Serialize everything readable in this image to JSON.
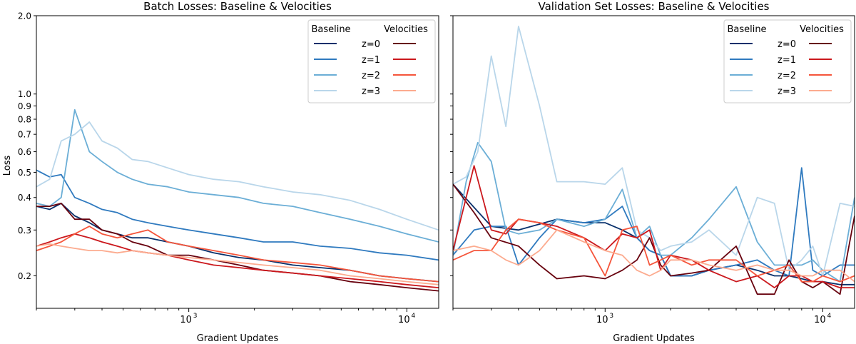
{
  "figure": {
    "shared_ylabel": "Loss",
    "xlabel": "Gradient Updates"
  },
  "legend": {
    "baseline_header": "Baseline",
    "velocities_header": "Velocities",
    "entries": [
      "z=0",
      "z=1",
      "z=2",
      "z=3"
    ],
    "baseline_colors": [
      "#08306b",
      "#2f7abf",
      "#6baed6",
      "#b9d6ea"
    ],
    "velocity_colors": [
      "#67000d",
      "#cb181d",
      "#f5553b",
      "#fcab8f"
    ],
    "placement": "top-right"
  },
  "chart_data": [
    {
      "type": "line",
      "title": "Batch Losses: Baseline & Velocities",
      "xlabel": "Gradient Updates",
      "ylabel": "Loss",
      "xscale": "log",
      "yscale": "log",
      "xlim": [
        200,
        14000
      ],
      "ylim": [
        0.15,
        2.0
      ],
      "x_ticks": [
        {
          "value": 1000,
          "base": "10",
          "exp": "3"
        },
        {
          "value": 10000,
          "base": "10",
          "exp": "4"
        }
      ],
      "y_ticks": [
        {
          "value": 0.2,
          "label": "0.2"
        },
        {
          "value": 0.3,
          "label": "0.3"
        },
        {
          "value": 0.4,
          "label": "0.4"
        },
        {
          "value": 0.5,
          "label": "0.5"
        },
        {
          "value": 0.6,
          "label": "0.6"
        },
        {
          "value": 0.7,
          "label": "0.7"
        },
        {
          "value": 0.8,
          "label": "0.8"
        },
        {
          "value": 0.9,
          "label": "0.9"
        },
        {
          "value": 1.0,
          "label": "1.0"
        },
        {
          "value": 2.0,
          "label": "2.0"
        }
      ],
      "grid": false,
      "legend": "top-right",
      "series": [
        {
          "group": "Baseline",
          "name": "z=0",
          "color": "#08306b",
          "x": [
            200,
            230,
            260,
            300,
            350,
            400,
            470,
            550,
            650,
            800,
            1000,
            1300,
            1700,
            2200,
            3000,
            4000,
            5500,
            7500,
            10000,
            14000
          ],
          "y": [
            0.37,
            0.36,
            0.38,
            0.34,
            0.32,
            0.3,
            0.29,
            0.28,
            0.28,
            0.27,
            0.26,
            0.245,
            0.235,
            0.23,
            0.22,
            0.215,
            0.21,
            0.2,
            0.195,
            0.19
          ]
        },
        {
          "group": "Baseline",
          "name": "z=1",
          "color": "#2f7abf",
          "x": [
            200,
            230,
            260,
            300,
            350,
            400,
            470,
            550,
            650,
            800,
            1000,
            1300,
            1700,
            2200,
            3000,
            4000,
            5500,
            7500,
            10000,
            14000
          ],
          "y": [
            0.51,
            0.48,
            0.49,
            0.4,
            0.38,
            0.36,
            0.35,
            0.33,
            0.32,
            0.31,
            0.3,
            0.29,
            0.28,
            0.27,
            0.27,
            0.26,
            0.255,
            0.245,
            0.24,
            0.23
          ]
        },
        {
          "group": "Baseline",
          "name": "z=2",
          "color": "#6baed6",
          "x": [
            200,
            230,
            260,
            300,
            350,
            400,
            470,
            550,
            650,
            800,
            1000,
            1300,
            1700,
            2200,
            3000,
            4000,
            5500,
            7500,
            10000,
            14000
          ],
          "y": [
            0.38,
            0.37,
            0.4,
            0.87,
            0.6,
            0.55,
            0.5,
            0.47,
            0.45,
            0.44,
            0.42,
            0.41,
            0.4,
            0.38,
            0.37,
            0.35,
            0.33,
            0.31,
            0.29,
            0.27
          ]
        },
        {
          "group": "Baseline",
          "name": "z=3",
          "color": "#b9d6ea",
          "x": [
            200,
            230,
            260,
            300,
            350,
            400,
            470,
            550,
            650,
            800,
            1000,
            1300,
            1700,
            2200,
            3000,
            4000,
            5500,
            7500,
            10000,
            14000
          ],
          "y": [
            0.44,
            0.47,
            0.66,
            0.7,
            0.78,
            0.66,
            0.62,
            0.56,
            0.55,
            0.52,
            0.49,
            0.47,
            0.46,
            0.44,
            0.42,
            0.41,
            0.39,
            0.36,
            0.33,
            0.3
          ]
        },
        {
          "group": "Velocities",
          "name": "z=0",
          "color": "#67000d",
          "x": [
            200,
            230,
            260,
            300,
            350,
            400,
            470,
            550,
            650,
            800,
            1000,
            1300,
            1700,
            2200,
            3000,
            4000,
            5500,
            7500,
            10000,
            14000
          ],
          "y": [
            0.37,
            0.37,
            0.38,
            0.33,
            0.33,
            0.3,
            0.29,
            0.27,
            0.26,
            0.24,
            0.24,
            0.23,
            0.22,
            0.21,
            0.205,
            0.2,
            0.19,
            0.185,
            0.18,
            0.175
          ]
        },
        {
          "group": "Velocities",
          "name": "z=1",
          "color": "#cb181d",
          "x": [
            200,
            230,
            260,
            300,
            350,
            400,
            470,
            550,
            650,
            800,
            1000,
            1300,
            1700,
            2200,
            3000,
            4000,
            5500,
            7500,
            10000,
            14000
          ],
          "y": [
            0.26,
            0.27,
            0.28,
            0.29,
            0.28,
            0.27,
            0.26,
            0.25,
            0.245,
            0.24,
            0.23,
            0.22,
            0.215,
            0.21,
            0.205,
            0.2,
            0.195,
            0.19,
            0.185,
            0.18
          ]
        },
        {
          "group": "Velocities",
          "name": "z=2",
          "color": "#f5553b",
          "x": [
            200,
            230,
            260,
            300,
            350,
            400,
            470,
            550,
            650,
            800,
            1000,
            1300,
            1700,
            2200,
            3000,
            4000,
            5500,
            7500,
            10000,
            14000
          ],
          "y": [
            0.25,
            0.26,
            0.27,
            0.29,
            0.31,
            0.29,
            0.28,
            0.29,
            0.3,
            0.27,
            0.26,
            0.25,
            0.24,
            0.23,
            0.225,
            0.22,
            0.21,
            0.2,
            0.195,
            0.19
          ]
        },
        {
          "group": "Velocities",
          "name": "z=3",
          "color": "#fcab8f",
          "x": [
            200,
            230,
            260,
            300,
            350,
            400,
            470,
            550,
            650,
            800,
            1000,
            1300,
            1700,
            2200,
            3000,
            4000,
            5500,
            7500,
            10000,
            14000
          ],
          "y": [
            0.26,
            0.265,
            0.26,
            0.255,
            0.25,
            0.25,
            0.245,
            0.25,
            0.245,
            0.24,
            0.235,
            0.23,
            0.225,
            0.22,
            0.215,
            0.21,
            0.2,
            0.195,
            0.19,
            0.185
          ]
        }
      ]
    },
    {
      "type": "line",
      "title": "Validation Set Losses: Baseline & Velocities",
      "xlabel": "Gradient Updates",
      "ylabel": "",
      "xscale": "log",
      "yscale": "log",
      "xlim": [
        200,
        14000
      ],
      "ylim": [
        0.15,
        2.0
      ],
      "x_ticks": [
        {
          "value": 1000,
          "base": "10",
          "exp": "3"
        },
        {
          "value": 10000,
          "base": "10",
          "exp": "4"
        }
      ],
      "y_ticks": [
        {
          "value": 0.2,
          "label": ""
        },
        {
          "value": 0.3,
          "label": ""
        },
        {
          "value": 0.4,
          "label": ""
        },
        {
          "value": 0.5,
          "label": ""
        },
        {
          "value": 0.6,
          "label": ""
        },
        {
          "value": 0.7,
          "label": ""
        },
        {
          "value": 0.8,
          "label": ""
        },
        {
          "value": 0.9,
          "label": ""
        },
        {
          "value": 1.0,
          "label": ""
        },
        {
          "value": 2.0,
          "label": ""
        }
      ],
      "grid": false,
      "legend": "top-right",
      "series": [
        {
          "group": "Baseline",
          "name": "z=0",
          "color": "#08306b",
          "x": [
            200,
            300,
            400,
            600,
            800,
            1000,
            1200,
            1400,
            1600,
            1800,
            2000,
            2500,
            3000,
            4000,
            5000,
            6000,
            7000,
            8000,
            9000,
            10000,
            12000,
            14000
          ],
          "y": [
            0.45,
            0.31,
            0.3,
            0.33,
            0.32,
            0.32,
            0.3,
            0.28,
            0.25,
            0.24,
            0.2,
            0.2,
            0.21,
            0.22,
            0.21,
            0.2,
            0.2,
            0.195,
            0.19,
            0.19,
            0.185,
            0.185
          ]
        },
        {
          "group": "Baseline",
          "name": "z=1",
          "color": "#2f7abf",
          "x": [
            200,
            250,
            300,
            350,
            400,
            500,
            600,
            800,
            1000,
            1200,
            1400,
            1600,
            1800,
            2000,
            2500,
            3000,
            4000,
            5000,
            6000,
            7000,
            8000,
            9000,
            10000,
            12000,
            14000
          ],
          "y": [
            0.24,
            0.3,
            0.31,
            0.31,
            0.22,
            0.28,
            0.33,
            0.32,
            0.33,
            0.37,
            0.28,
            0.25,
            0.24,
            0.2,
            0.2,
            0.21,
            0.22,
            0.23,
            0.21,
            0.2,
            0.52,
            0.21,
            0.2,
            0.22,
            0.22
          ]
        },
        {
          "group": "Baseline",
          "name": "z=2",
          "color": "#6baed6",
          "x": [
            200,
            230,
            260,
            300,
            350,
            400,
            500,
            600,
            800,
            1000,
            1200,
            1400,
            1600,
            1800,
            2000,
            2500,
            3000,
            4000,
            5000,
            6000,
            7000,
            8000,
            9000,
            10000,
            12000,
            14000
          ],
          "y": [
            0.24,
            0.46,
            0.65,
            0.55,
            0.3,
            0.29,
            0.3,
            0.33,
            0.31,
            0.33,
            0.43,
            0.28,
            0.31,
            0.24,
            0.24,
            0.28,
            0.33,
            0.44,
            0.27,
            0.22,
            0.22,
            0.22,
            0.23,
            0.21,
            0.19,
            0.4
          ]
        },
        {
          "group": "Baseline",
          "name": "z=3",
          "color": "#b9d6ea",
          "x": [
            200,
            230,
            260,
            300,
            350,
            400,
            500,
            600,
            800,
            1000,
            1200,
            1400,
            1600,
            1800,
            2000,
            2500,
            3000,
            4000,
            5000,
            6000,
            7000,
            8000,
            9000,
            10000,
            12000,
            14000
          ],
          "y": [
            0.45,
            0.48,
            0.6,
            1.4,
            0.75,
            1.82,
            0.9,
            0.46,
            0.46,
            0.45,
            0.52,
            0.3,
            0.28,
            0.25,
            0.26,
            0.27,
            0.3,
            0.24,
            0.4,
            0.38,
            0.21,
            0.23,
            0.26,
            0.2,
            0.38,
            0.37
          ]
        },
        {
          "group": "Velocities",
          "name": "z=0",
          "color": "#67000d",
          "x": [
            200,
            250,
            300,
            400,
            500,
            600,
            800,
            1000,
            1200,
            1400,
            1600,
            1800,
            2000,
            2500,
            3000,
            4000,
            5000,
            6000,
            7000,
            8000,
            9000,
            10000,
            12000,
            14000
          ],
          "y": [
            0.45,
            0.35,
            0.28,
            0.26,
            0.22,
            0.195,
            0.2,
            0.195,
            0.21,
            0.23,
            0.28,
            0.22,
            0.2,
            0.205,
            0.21,
            0.26,
            0.17,
            0.17,
            0.23,
            0.19,
            0.18,
            0.19,
            0.17,
            0.34
          ]
        },
        {
          "group": "Velocities",
          "name": "z=1",
          "color": "#cb181d",
          "x": [
            200,
            250,
            300,
            350,
            400,
            500,
            600,
            800,
            1000,
            1200,
            1400,
            1600,
            1800,
            2000,
            2500,
            3000,
            4000,
            5000,
            6000,
            7000,
            8000,
            9000,
            10000,
            12000,
            14000
          ],
          "y": [
            0.25,
            0.53,
            0.3,
            0.29,
            0.33,
            0.32,
            0.31,
            0.28,
            0.25,
            0.29,
            0.28,
            0.3,
            0.21,
            0.24,
            0.23,
            0.21,
            0.19,
            0.2,
            0.18,
            0.2,
            0.2,
            0.19,
            0.19,
            0.18,
            0.18
          ]
        },
        {
          "group": "Velocities",
          "name": "z=2",
          "color": "#f5553b",
          "x": [
            200,
            250,
            300,
            350,
            400,
            500,
            600,
            800,
            1000,
            1200,
            1400,
            1600,
            1800,
            2000,
            2500,
            3000,
            4000,
            5000,
            6000,
            7000,
            8000,
            9000,
            10000,
            12000,
            14000
          ],
          "y": [
            0.23,
            0.25,
            0.25,
            0.3,
            0.33,
            0.32,
            0.3,
            0.28,
            0.2,
            0.3,
            0.31,
            0.22,
            0.23,
            0.24,
            0.22,
            0.23,
            0.23,
            0.2,
            0.21,
            0.22,
            0.19,
            0.19,
            0.2,
            0.19,
            0.2
          ]
        },
        {
          "group": "Velocities",
          "name": "z=3",
          "color": "#fcab8f",
          "x": [
            200,
            250,
            300,
            350,
            400,
            500,
            600,
            800,
            1000,
            1200,
            1400,
            1600,
            1800,
            2000,
            2500,
            3000,
            4000,
            5000,
            6000,
            7000,
            8000,
            9000,
            10000,
            12000,
            14000
          ],
          "y": [
            0.25,
            0.26,
            0.25,
            0.23,
            0.22,
            0.25,
            0.3,
            0.27,
            0.25,
            0.24,
            0.21,
            0.2,
            0.21,
            0.23,
            0.23,
            0.22,
            0.21,
            0.22,
            0.21,
            0.21,
            0.2,
            0.2,
            0.21,
            0.21,
            0.19
          ]
        }
      ]
    }
  ]
}
